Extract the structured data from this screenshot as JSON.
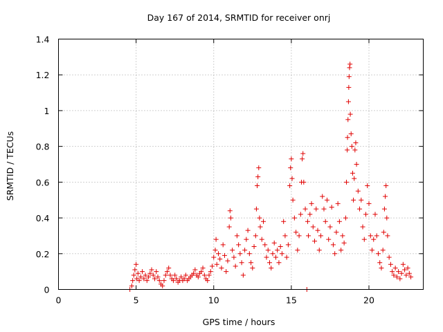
{
  "chart_data": {
    "type": "scatter",
    "title": "Day 167 of 2014, SRMTID for receiver onrj",
    "xlabel": "GPS time / hours",
    "ylabel": "SRMTID / TECUs",
    "xlim": [
      0,
      23.5
    ],
    "ylim": [
      0,
      1.4
    ],
    "xticks": [
      0,
      5,
      10,
      15,
      20
    ],
    "yticks": [
      0,
      0.2,
      0.4,
      0.6,
      0.8,
      1,
      1.2,
      1.4
    ],
    "xtick_labels": [
      "0",
      "5",
      "10",
      "15",
      "20"
    ],
    "ytick_labels": [
      "0",
      "0.2",
      "0.4",
      "0.6",
      "0.8",
      "1",
      "1.2",
      "1.4"
    ],
    "grid": true,
    "marker": "+",
    "color": "#e00000",
    "series": [
      {
        "name": "onrj",
        "points": [
          [
            4.6,
            0.0
          ],
          [
            4.72,
            0.02
          ],
          [
            4.78,
            0.05
          ],
          [
            4.85,
            0.08
          ],
          [
            4.92,
            0.11
          ],
          [
            5.0,
            0.14
          ],
          [
            5.05,
            0.06
          ],
          [
            5.12,
            0.09
          ],
          [
            5.2,
            0.05
          ],
          [
            5.3,
            0.07
          ],
          [
            5.4,
            0.1
          ],
          [
            5.5,
            0.06
          ],
          [
            5.6,
            0.08
          ],
          [
            5.7,
            0.05
          ],
          [
            5.8,
            0.07
          ],
          [
            5.9,
            0.09
          ],
          [
            6.0,
            0.11
          ],
          [
            6.1,
            0.08
          ],
          [
            6.2,
            0.06
          ],
          [
            6.3,
            0.1
          ],
          [
            6.4,
            0.07
          ],
          [
            6.5,
            0.05
          ],
          [
            6.6,
            0.03
          ],
          [
            6.7,
            0.02
          ],
          [
            6.8,
            0.05
          ],
          [
            6.9,
            0.08
          ],
          [
            7.0,
            0.1
          ],
          [
            7.1,
            0.12
          ],
          [
            7.2,
            0.08
          ],
          [
            7.3,
            0.06
          ],
          [
            7.4,
            0.05
          ],
          [
            7.5,
            0.08
          ],
          [
            7.6,
            0.06
          ],
          [
            7.7,
            0.04
          ],
          [
            7.8,
            0.05
          ],
          [
            7.9,
            0.07
          ],
          [
            8.0,
            0.05
          ],
          [
            8.1,
            0.06
          ],
          [
            8.2,
            0.08
          ],
          [
            8.3,
            0.05
          ],
          [
            8.4,
            0.06
          ],
          [
            8.5,
            0.07
          ],
          [
            8.6,
            0.08
          ],
          [
            8.7,
            0.09
          ],
          [
            8.8,
            0.11
          ],
          [
            8.9,
            0.08
          ],
          [
            9.0,
            0.07
          ],
          [
            9.1,
            0.09
          ],
          [
            9.2,
            0.1
          ],
          [
            9.3,
            0.12
          ],
          [
            9.4,
            0.08
          ],
          [
            9.5,
            0.06
          ],
          [
            9.6,
            0.05
          ],
          [
            9.7,
            0.08
          ],
          [
            9.8,
            0.1
          ],
          [
            9.9,
            0.13
          ],
          [
            10.0,
            0.18
          ],
          [
            10.1,
            0.22
          ],
          [
            10.15,
            0.28
          ],
          [
            10.2,
            0.14
          ],
          [
            10.3,
            0.2
          ],
          [
            10.4,
            0.17
          ],
          [
            10.5,
            0.12
          ],
          [
            10.6,
            0.25
          ],
          [
            10.7,
            0.19
          ],
          [
            10.8,
            0.1
          ],
          [
            10.9,
            0.16
          ],
          [
            11.0,
            0.35
          ],
          [
            11.05,
            0.44
          ],
          [
            11.1,
            0.4
          ],
          [
            11.2,
            0.22
          ],
          [
            11.3,
            0.18
          ],
          [
            11.4,
            0.13
          ],
          [
            11.5,
            0.3
          ],
          [
            11.6,
            0.25
          ],
          [
            11.7,
            0.2
          ],
          [
            11.8,
            0.15
          ],
          [
            11.9,
            0.08
          ],
          [
            12.0,
            0.22
          ],
          [
            12.1,
            0.28
          ],
          [
            12.2,
            0.33
          ],
          [
            12.3,
            0.2
          ],
          [
            12.4,
            0.15
          ],
          [
            12.5,
            0.12
          ],
          [
            12.6,
            0.24
          ],
          [
            12.7,
            0.3
          ],
          [
            12.75,
            0.45
          ],
          [
            12.8,
            0.58
          ],
          [
            12.85,
            0.63
          ],
          [
            12.9,
            0.68
          ],
          [
            12.95,
            0.4
          ],
          [
            13.0,
            0.35
          ],
          [
            13.1,
            0.28
          ],
          [
            13.2,
            0.38
          ],
          [
            13.3,
            0.25
          ],
          [
            13.4,
            0.18
          ],
          [
            13.5,
            0.22
          ],
          [
            13.6,
            0.15
          ],
          [
            13.7,
            0.12
          ],
          [
            13.8,
            0.2
          ],
          [
            13.9,
            0.26
          ],
          [
            14.0,
            0.18
          ],
          [
            14.1,
            0.22
          ],
          [
            14.2,
            0.15
          ],
          [
            14.3,
            0.24
          ],
          [
            14.4,
            0.2
          ],
          [
            14.5,
            0.38
          ],
          [
            14.6,
            0.3
          ],
          [
            14.7,
            0.18
          ],
          [
            14.8,
            0.25
          ],
          [
            14.9,
            0.58
          ],
          [
            14.95,
            0.68
          ],
          [
            15.0,
            0.73
          ],
          [
            15.05,
            0.62
          ],
          [
            15.1,
            0.5
          ],
          [
            15.2,
            0.4
          ],
          [
            15.3,
            0.32
          ],
          [
            15.4,
            0.22
          ],
          [
            15.5,
            0.3
          ],
          [
            15.6,
            0.42
          ],
          [
            15.65,
            0.6
          ],
          [
            15.7,
            0.73
          ],
          [
            15.75,
            0.76
          ],
          [
            15.8,
            0.6
          ],
          [
            15.9,
            0.45
          ],
          [
            16.0,
            0.0
          ],
          [
            16.05,
            0.38
          ],
          [
            16.1,
            0.3
          ],
          [
            16.2,
            0.42
          ],
          [
            16.3,
            0.48
          ],
          [
            16.4,
            0.35
          ],
          [
            16.5,
            0.27
          ],
          [
            16.6,
            0.45
          ],
          [
            16.7,
            0.33
          ],
          [
            16.8,
            0.22
          ],
          [
            16.9,
            0.3
          ],
          [
            17.0,
            0.52
          ],
          [
            17.1,
            0.45
          ],
          [
            17.2,
            0.38
          ],
          [
            17.3,
            0.5
          ],
          [
            17.4,
            0.28
          ],
          [
            17.5,
            0.35
          ],
          [
            17.6,
            0.46
          ],
          [
            17.7,
            0.25
          ],
          [
            17.8,
            0.2
          ],
          [
            17.9,
            0.32
          ],
          [
            18.0,
            0.48
          ],
          [
            18.1,
            0.38
          ],
          [
            18.2,
            0.22
          ],
          [
            18.3,
            0.3
          ],
          [
            18.4,
            0.26
          ],
          [
            18.5,
            0.4
          ],
          [
            18.55,
            0.6
          ],
          [
            18.6,
            0.78
          ],
          [
            18.62,
            0.85
          ],
          [
            18.65,
            0.95
          ],
          [
            18.68,
            1.05
          ],
          [
            18.7,
            1.13
          ],
          [
            18.72,
            1.19
          ],
          [
            18.75,
            1.24
          ],
          [
            18.78,
            1.26
          ],
          [
            18.8,
            0.98
          ],
          [
            18.85,
            0.87
          ],
          [
            18.9,
            0.8
          ],
          [
            18.95,
            0.65
          ],
          [
            19.0,
            0.5
          ],
          [
            19.05,
            0.62
          ],
          [
            19.1,
            0.78
          ],
          [
            19.15,
            0.82
          ],
          [
            19.2,
            0.7
          ],
          [
            19.3,
            0.55
          ],
          [
            19.4,
            0.45
          ],
          [
            19.5,
            0.5
          ],
          [
            19.6,
            0.35
          ],
          [
            19.7,
            0.28
          ],
          [
            19.8,
            0.42
          ],
          [
            19.9,
            0.58
          ],
          [
            20.0,
            0.48
          ],
          [
            20.1,
            0.3
          ],
          [
            20.2,
            0.22
          ],
          [
            20.3,
            0.28
          ],
          [
            20.4,
            0.42
          ],
          [
            20.5,
            0.3
          ],
          [
            20.6,
            0.2
          ],
          [
            20.7,
            0.15
          ],
          [
            20.8,
            0.12
          ],
          [
            20.9,
            0.22
          ],
          [
            20.95,
            0.32
          ],
          [
            21.0,
            0.45
          ],
          [
            21.05,
            0.52
          ],
          [
            21.1,
            0.58
          ],
          [
            21.15,
            0.4
          ],
          [
            21.2,
            0.3
          ],
          [
            21.3,
            0.18
          ],
          [
            21.4,
            0.14
          ],
          [
            21.5,
            0.1
          ],
          [
            21.6,
            0.08
          ],
          [
            21.7,
            0.12
          ],
          [
            21.8,
            0.07
          ],
          [
            21.9,
            0.1
          ],
          [
            22.0,
            0.06
          ],
          [
            22.1,
            0.09
          ],
          [
            22.2,
            0.14
          ],
          [
            22.3,
            0.11
          ],
          [
            22.4,
            0.08
          ],
          [
            22.5,
            0.12
          ],
          [
            22.6,
            0.09
          ],
          [
            22.7,
            0.07
          ]
        ]
      }
    ]
  }
}
